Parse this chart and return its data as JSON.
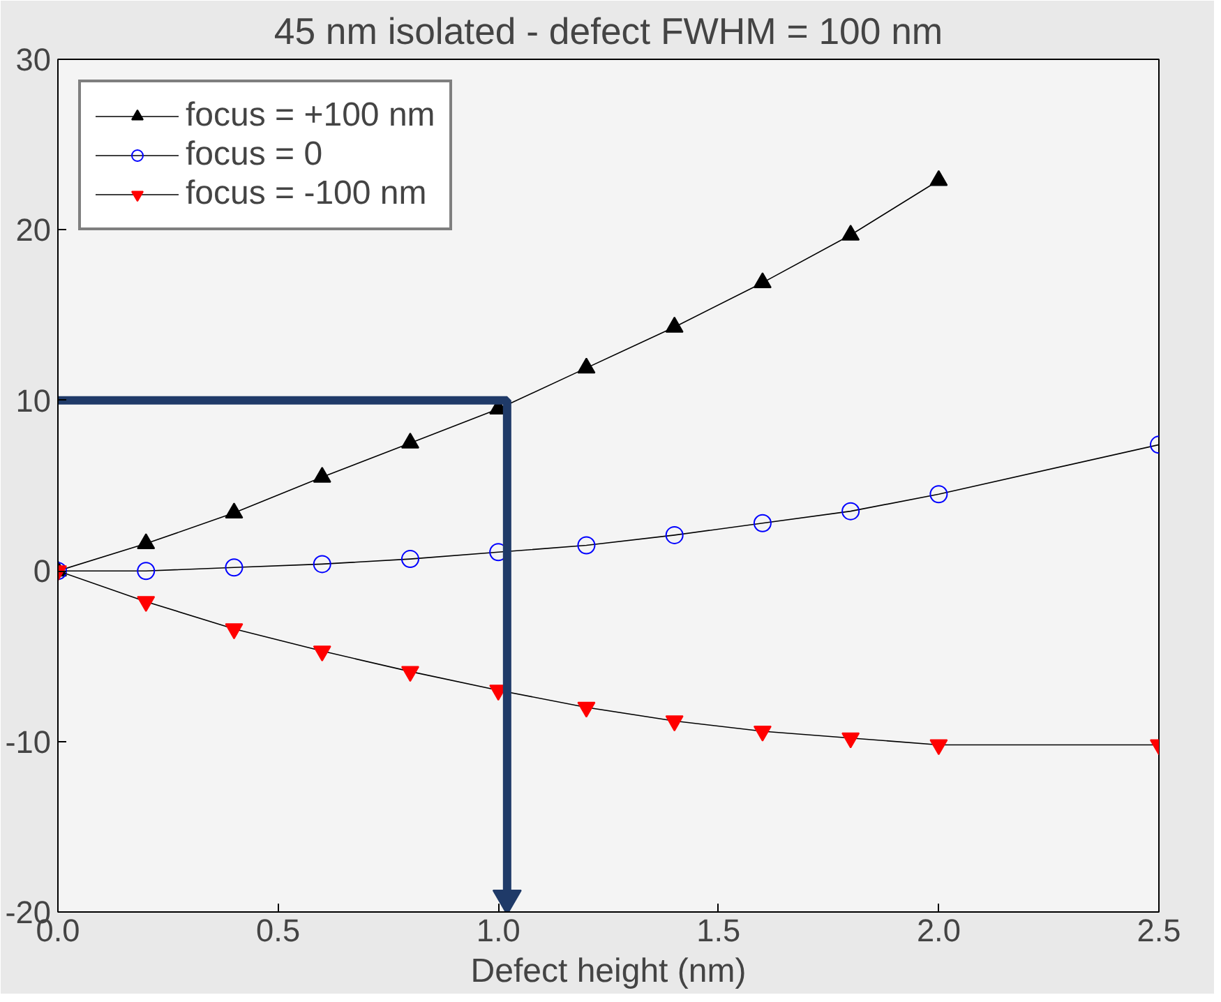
{
  "chart_data": {
    "type": "line",
    "title": "45 nm isolated - defect FWHM = 100 nm",
    "xlabel": "Defect height (nm)",
    "xlim": [
      0,
      2.5
    ],
    "xticks": [
      {
        "value": 0,
        "label": "0.0"
      },
      0.5,
      {
        "value": 1,
        "label": "1.0"
      },
      1.5,
      {
        "value": 2,
        "label": "2.0"
      },
      2.5
    ],
    "ylim": [
      -20,
      30
    ],
    "yticks": [
      -20,
      -10,
      0,
      10,
      20,
      30
    ],
    "grid": false,
    "legend": "top left",
    "series": [
      {
        "name": "focus = +100 nm",
        "color": "#000000",
        "marker": "triangle",
        "x": [
          0,
          0.2,
          0.4,
          0.6,
          0.8,
          1.0,
          1.2,
          1.4,
          1.6,
          1.8,
          2.0
        ],
        "values": [
          0,
          1.6,
          3.4,
          5.5,
          7.5,
          9.5,
          11.9,
          14.3,
          16.9,
          19.7,
          22.9
        ]
      },
      {
        "name": "focus = 0",
        "color": "#0000ff",
        "marker": "circle",
        "x": [
          0,
          0.2,
          0.4,
          0.6,
          0.8,
          1.0,
          1.2,
          1.4,
          1.6,
          1.8,
          2.0,
          2.5
        ],
        "values": [
          0,
          0.0,
          0.2,
          0.4,
          0.7,
          1.1,
          1.5,
          2.1,
          2.8,
          3.5,
          4.5,
          7.4
        ]
      },
      {
        "name": "focus = -100 nm",
        "color": "#ff0000",
        "marker": "triangle_down",
        "x": [
          0,
          0.2,
          0.4,
          0.6,
          0.8,
          1.0,
          1.2,
          1.4,
          1.6,
          1.8,
          2.0,
          2.5
        ],
        "values": [
          0,
          -1.8,
          -3.4,
          -4.7,
          -5.9,
          -7.0,
          -8.0,
          -8.8,
          -9.4,
          -9.8,
          -10.2,
          -10.2
        ]
      }
    ]
  }
}
